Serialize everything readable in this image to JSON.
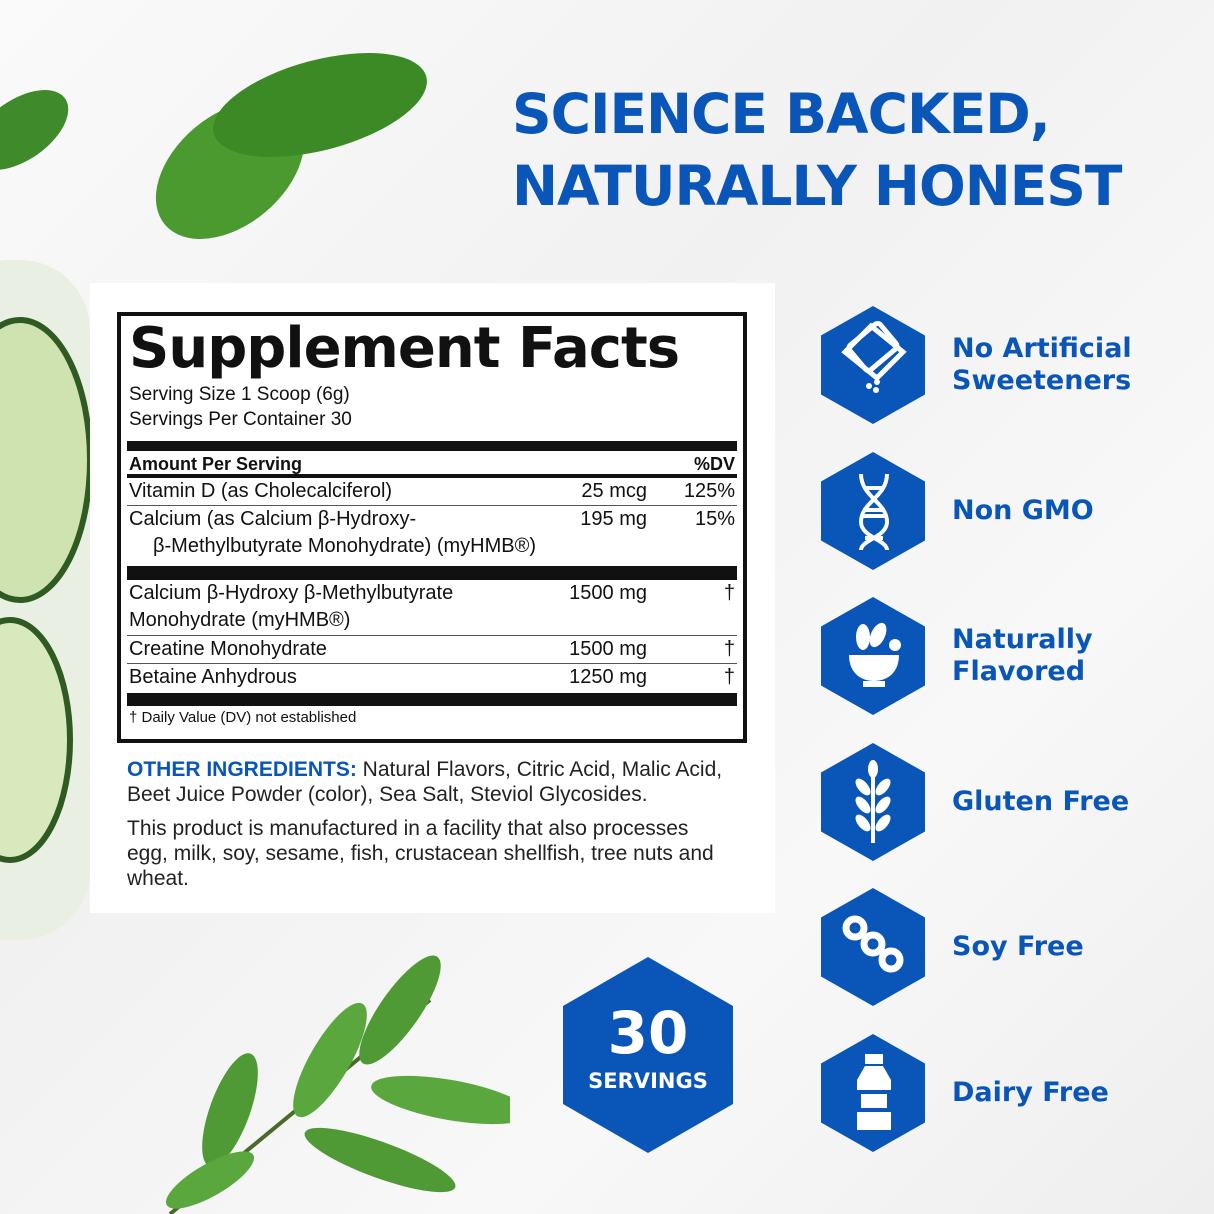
{
  "headline": {
    "line1": "SCIENCE BACKED,",
    "line2": "NATURALLY HONEST"
  },
  "colors": {
    "brand_blue": "#0a55b8",
    "leaf_green": "#3f8a2a"
  },
  "facts": {
    "title": "Supplement Facts",
    "serving_size": "Serving Size 1 Scoop (6g)",
    "servings_per_container": "Servings Per Container 30",
    "header_amount": "Amount Per Serving",
    "header_dv": "%DV",
    "rows_a": [
      {
        "name": "Vitamin D (as Cholecalciferol)",
        "amount": "25 mcg",
        "dv": "125%"
      },
      {
        "name": "Calcium (as Calcium β-Hydroxy-",
        "name2": "β-Methylbutyrate Monohydrate) (myHMB®)",
        "amount": "195 mg",
        "dv": "15%"
      }
    ],
    "rows_b": [
      {
        "name": "Calcium β-Hydroxy β-Methylbutyrate",
        "name2": "Monohydrate (myHMB®)",
        "amount": "1500 mg",
        "dv": "†"
      },
      {
        "name": "Creatine Monohydrate",
        "amount": "1500 mg",
        "dv": "†"
      },
      {
        "name": "Betaine Anhydrous",
        "amount": "1250 mg",
        "dv": "†"
      }
    ],
    "footnote": "† Daily Value (DV) not established"
  },
  "other_ingredients": {
    "label": "OTHER INGREDIENTS:",
    "text": " Natural Flavors, Citric Acid, Malic Acid, Beet Juice Powder (color), Sea Salt, Steviol Glycosides."
  },
  "allergen": "This product is manufactured in a facility that also processes egg, milk, soy, sesame, fish, crustacean shellfish, tree nuts and wheat.",
  "servings_badge": {
    "number": "30",
    "label": "SERVINGS"
  },
  "features": [
    {
      "icon": "sweetener-packet-icon",
      "label": "No Artificial Sweeteners"
    },
    {
      "icon": "dna-icon",
      "label": "Non GMO"
    },
    {
      "icon": "mortar-leaf-icon",
      "label": "Naturally Flavored"
    },
    {
      "icon": "wheat-icon",
      "label": "Gluten Free"
    },
    {
      "icon": "soybean-icon",
      "label": "Soy Free"
    },
    {
      "icon": "milk-bottle-icon",
      "label": "Dairy Free"
    }
  ]
}
